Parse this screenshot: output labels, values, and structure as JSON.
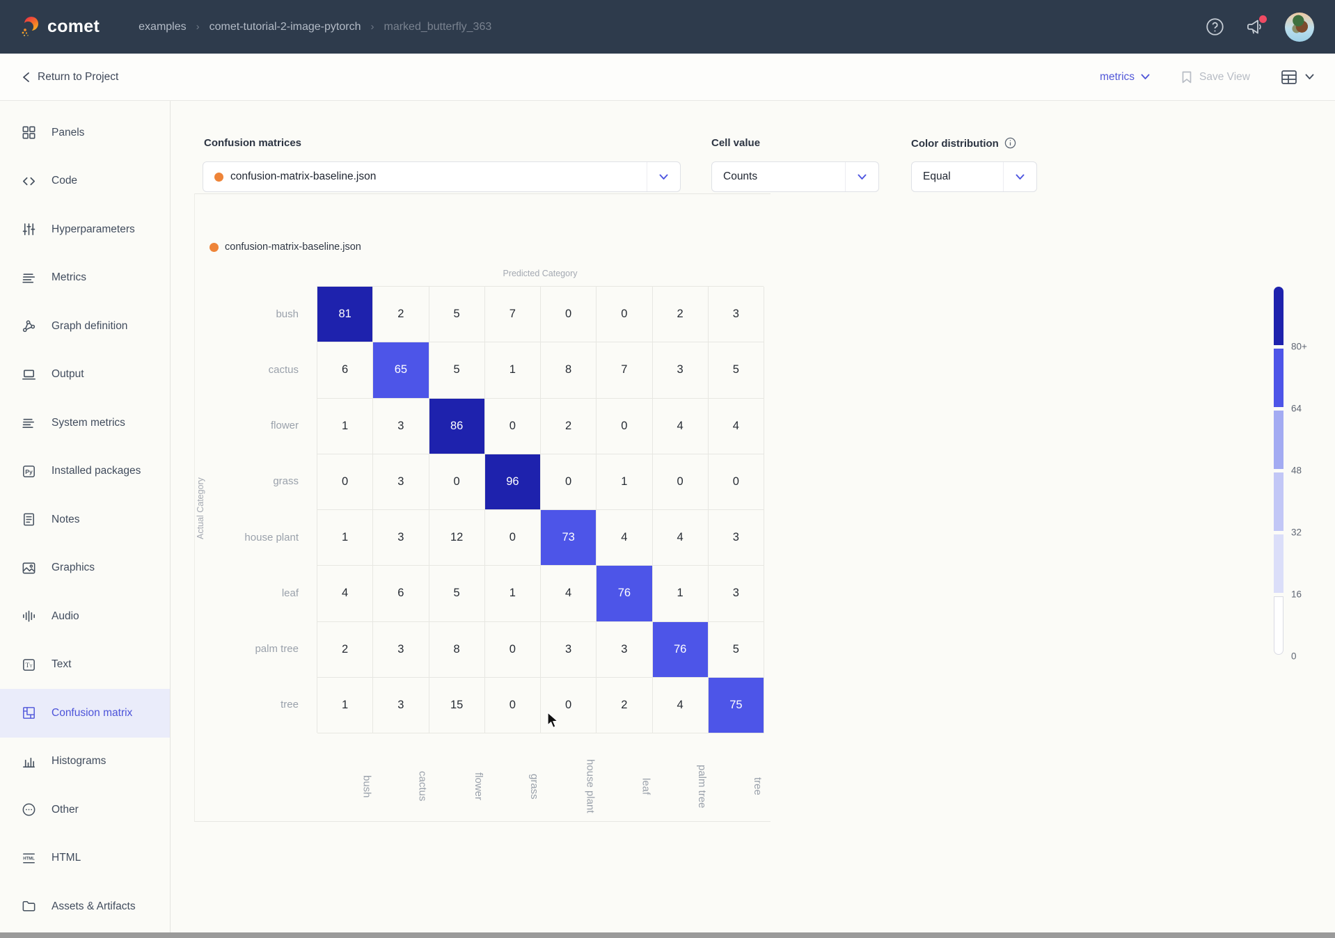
{
  "navbar": {
    "logo_text": "comet",
    "breadcrumbs": [
      "examples",
      "comet-tutorial-2-image-pytorch",
      "marked_butterfly_363"
    ]
  },
  "toolbar": {
    "back_label": "Return to Project",
    "view_dropdown_label": "metrics",
    "save_view_label": "Save View"
  },
  "sidebar": {
    "items": [
      {
        "label": "Panels",
        "icon": "panels-icon",
        "selected": false
      },
      {
        "label": "Code",
        "icon": "code-icon",
        "selected": false
      },
      {
        "label": "Hyperparameters",
        "icon": "hyperparameters-icon",
        "selected": false
      },
      {
        "label": "Metrics",
        "icon": "metrics-icon",
        "selected": false
      },
      {
        "label": "Graph definition",
        "icon": "graph-definition-icon",
        "selected": false
      },
      {
        "label": "Output",
        "icon": "output-icon",
        "selected": false
      },
      {
        "label": "System metrics",
        "icon": "system-metrics-icon",
        "selected": false
      },
      {
        "label": "Installed packages",
        "icon": "installed-packages-icon",
        "selected": false
      },
      {
        "label": "Notes",
        "icon": "notes-icon",
        "selected": false
      },
      {
        "label": "Graphics",
        "icon": "graphics-icon",
        "selected": false
      },
      {
        "label": "Audio",
        "icon": "audio-icon",
        "selected": false
      },
      {
        "label": "Text",
        "icon": "text-icon",
        "selected": false
      },
      {
        "label": "Confusion matrix",
        "icon": "confusion-matrix-icon",
        "selected": true
      },
      {
        "label": "Histograms",
        "icon": "histograms-icon",
        "selected": false
      },
      {
        "label": "Other",
        "icon": "other-icon",
        "selected": false
      },
      {
        "label": "HTML",
        "icon": "html-icon",
        "selected": false
      },
      {
        "label": "Assets & Artifacts",
        "icon": "assets-icon",
        "selected": false
      }
    ]
  },
  "controls": {
    "matrices_label": "Confusion matrices",
    "matrix_select_value": "confusion-matrix-baseline.json",
    "cell_value_label": "Cell value",
    "cell_value": "Counts",
    "color_distribution_label": "Color distribution",
    "color_distribution_value": "Equal"
  },
  "legend_item": "confusion-matrix-baseline.json",
  "chart_data": {
    "type": "heatmap",
    "xlabel": "Predicted Category",
    "ylabel": "Actual Category",
    "categories": [
      "bush",
      "cactus",
      "flower",
      "grass",
      "house plant",
      "leaf",
      "palm tree",
      "tree"
    ],
    "rows": [
      [
        81,
        2,
        5,
        7,
        0,
        0,
        2,
        3
      ],
      [
        6,
        65,
        5,
        1,
        8,
        7,
        3,
        5
      ],
      [
        1,
        3,
        86,
        0,
        2,
        0,
        4,
        4
      ],
      [
        0,
        3,
        0,
        96,
        0,
        1,
        0,
        0
      ],
      [
        1,
        3,
        12,
        0,
        73,
        4,
        4,
        3
      ],
      [
        4,
        6,
        5,
        1,
        4,
        76,
        1,
        3
      ],
      [
        2,
        3,
        8,
        0,
        3,
        3,
        76,
        5
      ],
      [
        1,
        3,
        15,
        0,
        0,
        2,
        4,
        75
      ]
    ],
    "colorbar": {
      "labels": [
        "80+",
        "64",
        "48",
        "32",
        "16",
        "0"
      ],
      "thresholds": [
        80,
        64,
        48,
        32,
        16,
        0
      ],
      "colors": [
        "#1e22ad",
        "#4d55e8",
        "#a3abf2",
        "#c2c7f6",
        "#dbdef9",
        "#ffffff"
      ]
    }
  },
  "colors": {
    "accent": "#4c53d9",
    "navbar_bg": "#2e3b4c",
    "orange_marker": "#ee8438",
    "notification_dot": "#ef4b63",
    "diag_dark": "#1e22ad",
    "diag_mid": "#565ce4"
  }
}
